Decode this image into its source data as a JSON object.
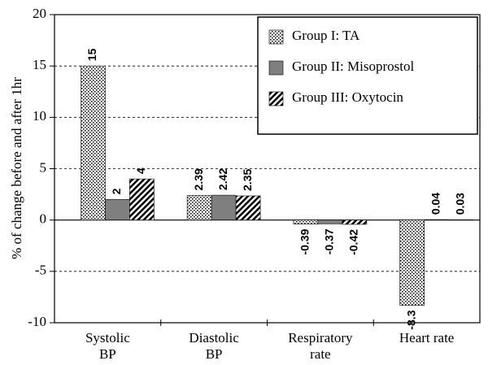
{
  "chart_data": {
    "type": "bar",
    "ylabel": "% of change before and after 1hr",
    "categories": [
      [
        "Systolic",
        "BP"
      ],
      [
        "Diastolic",
        "BP"
      ],
      [
        "Respiratory",
        "rate"
      ],
      [
        "Heart rate"
      ]
    ],
    "series": [
      {
        "name": "Group I: TA",
        "color": "#ffffff",
        "pattern": "dots",
        "values": [
          15,
          2.39,
          -0.39,
          -8.3
        ]
      },
      {
        "name": "Group II: Misoprostol",
        "color": "#7f7f7f",
        "pattern": "solid",
        "values": [
          2,
          2.42,
          -0.37,
          0.04
        ]
      },
      {
        "name": "Group III: Oxytocin",
        "color": "#ffffff",
        "pattern": "hatch",
        "values": [
          4,
          2.35,
          -0.42,
          0.03
        ]
      }
    ],
    "ylim": [
      -10,
      20
    ],
    "yticks": [
      -10,
      -5,
      0,
      5,
      10,
      15,
      20
    ],
    "grid": true,
    "legend": "upper right"
  }
}
